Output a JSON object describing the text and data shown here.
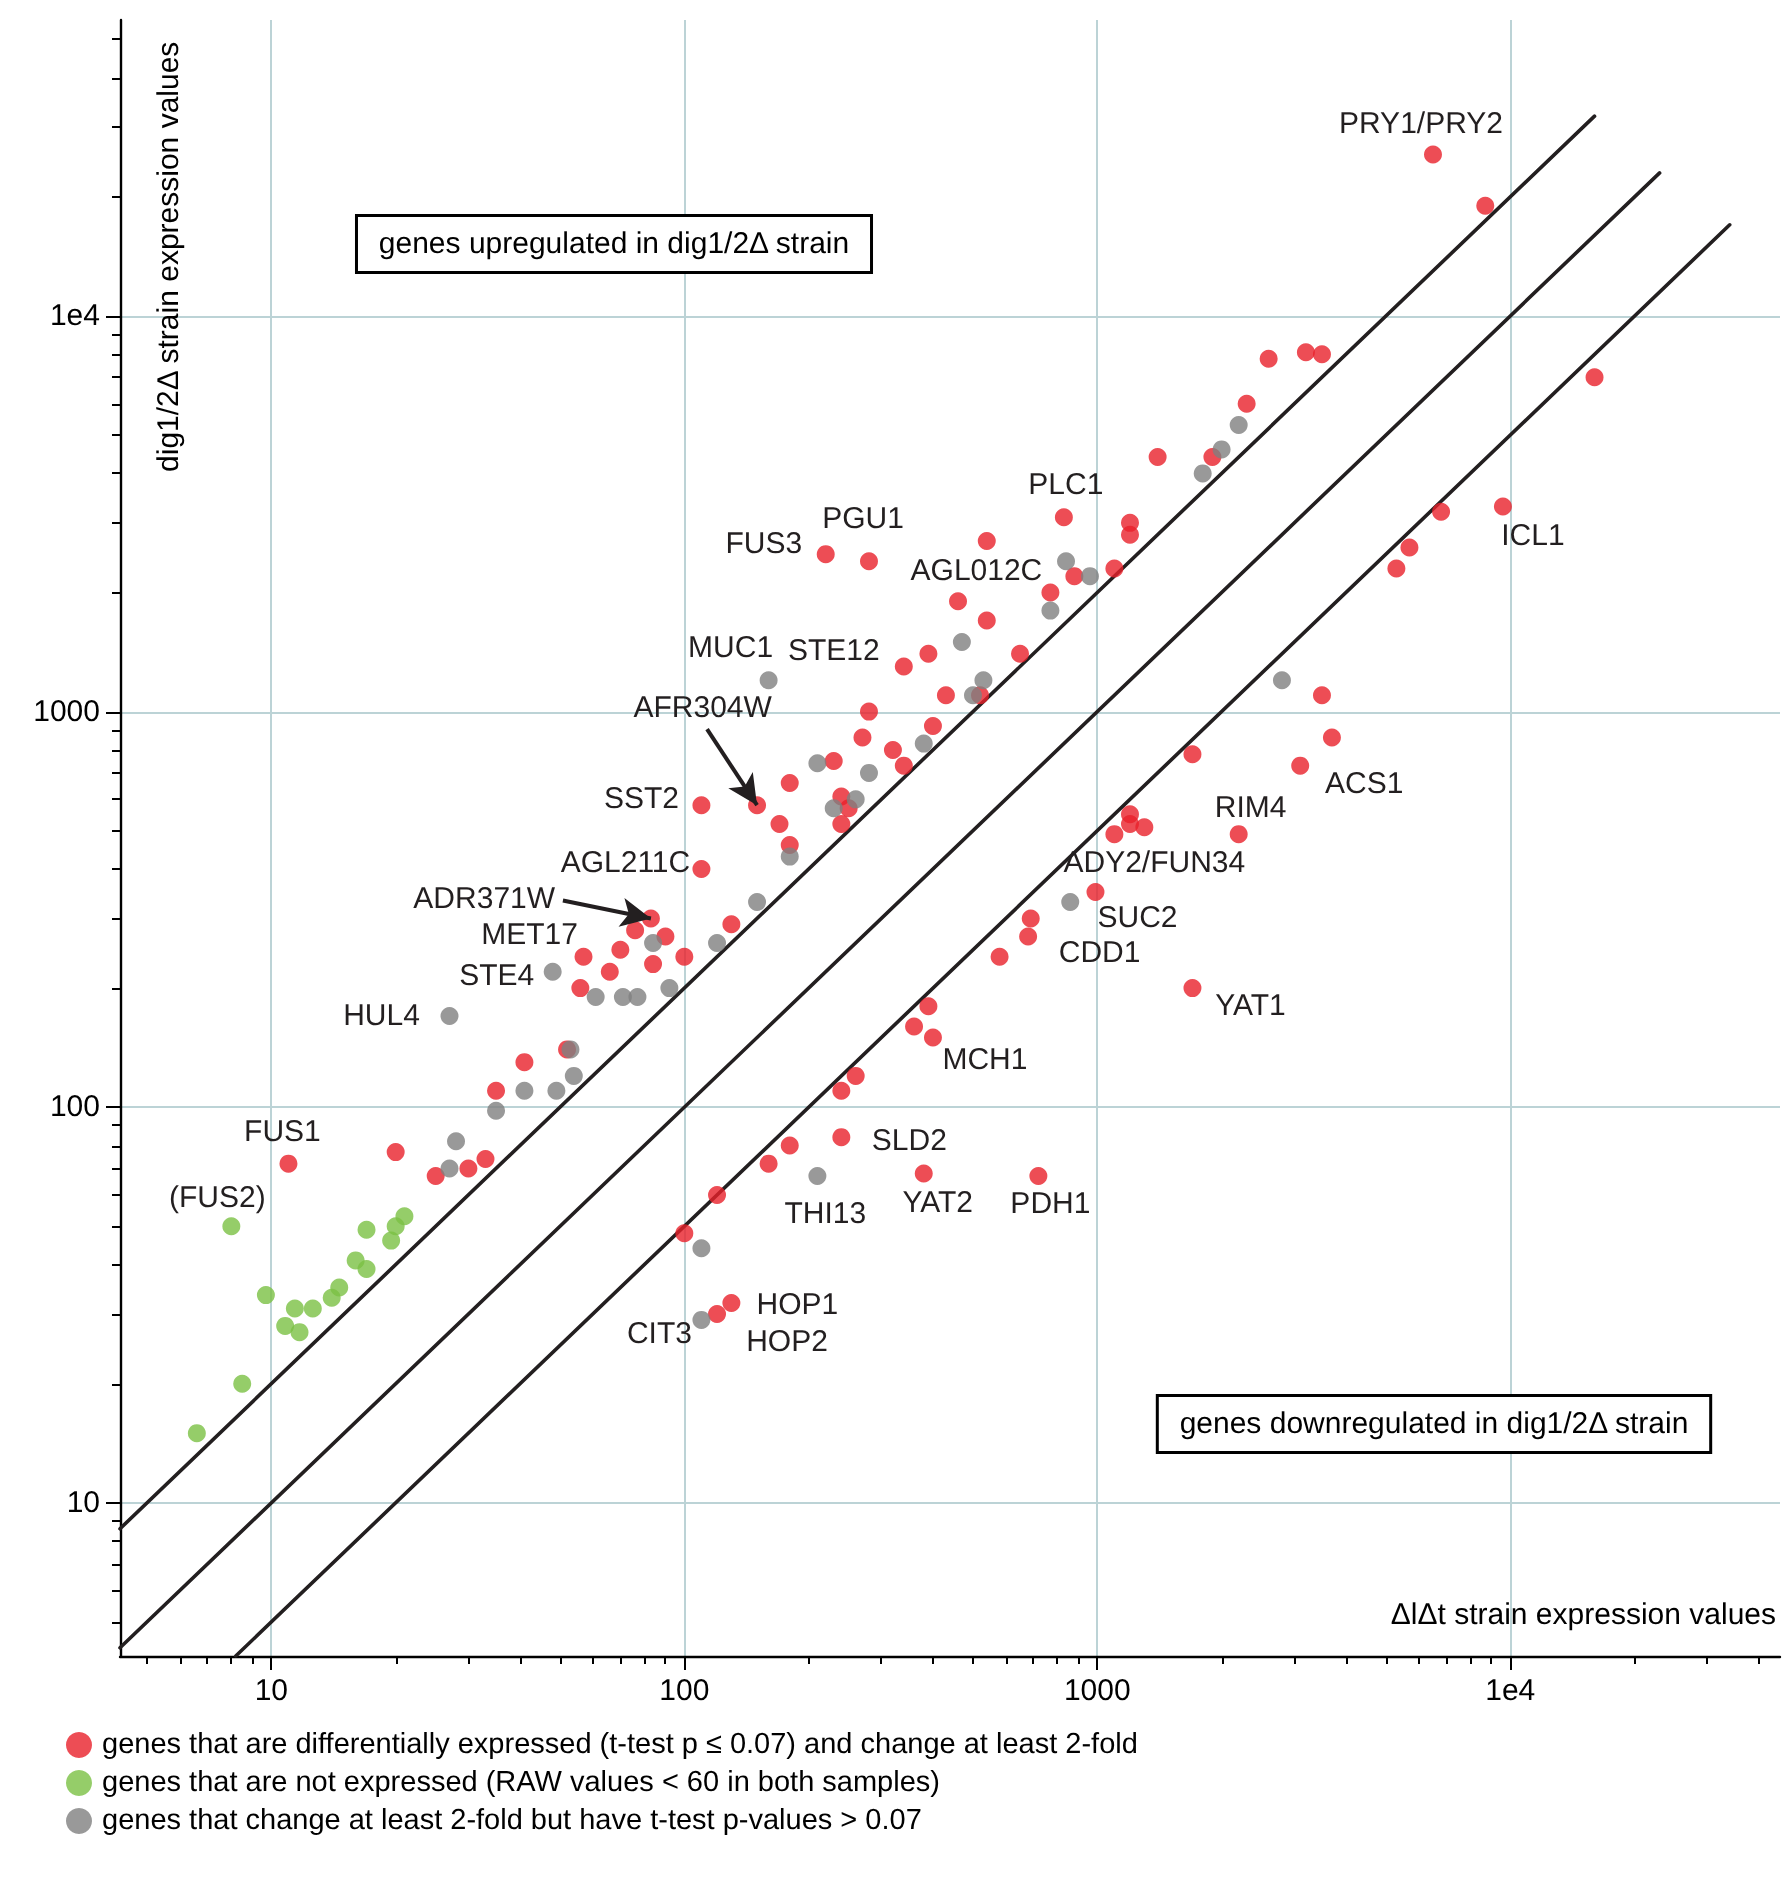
{
  "chart_data": {
    "type": "scatter",
    "xlabel": "ΔlΔt strain expression values",
    "ylabel": "dig1/2Δ strain expression values",
    "log": "xy",
    "grid": true,
    "legend": "bottom",
    "marker": "circle",
    "xlim": [
      4.3,
      45000
    ],
    "ylim": [
      4.1,
      56000
    ],
    "xticks": [
      {
        "value": 5,
        "label": null
      },
      {
        "value": 6,
        "label": null
      },
      {
        "value": 7,
        "label": null
      },
      {
        "value": 8,
        "label": null
      },
      {
        "value": 9,
        "label": null
      },
      10,
      {
        "value": 20,
        "label": null
      },
      {
        "value": 30,
        "label": null
      },
      {
        "value": 40,
        "label": null
      },
      {
        "value": 50,
        "label": null
      },
      {
        "value": 60,
        "label": null
      },
      {
        "value": 70,
        "label": null
      },
      {
        "value": 80,
        "label": null
      },
      {
        "value": 90,
        "label": null
      },
      100,
      {
        "value": 200,
        "label": null
      },
      {
        "value": 300,
        "label": null
      },
      {
        "value": 400,
        "label": null
      },
      {
        "value": 500,
        "label": null
      },
      {
        "value": 600,
        "label": null
      },
      {
        "value": 700,
        "label": null
      },
      {
        "value": 800,
        "label": null
      },
      {
        "value": 900,
        "label": null
      },
      1000,
      {
        "value": 2000,
        "label": null
      },
      {
        "value": 3000,
        "label": null
      },
      {
        "value": 4000,
        "label": null
      },
      {
        "value": 5000,
        "label": null
      },
      {
        "value": 6000,
        "label": null
      },
      {
        "value": 7000,
        "label": null
      },
      {
        "value": 8000,
        "label": null
      },
      {
        "value": 9000,
        "label": null
      },
      {
        "value": 10000,
        "label": "1e4"
      },
      {
        "value": 20000,
        "label": null
      },
      {
        "value": 30000,
        "label": null
      },
      {
        "value": 40000,
        "label": null
      }
    ],
    "yticks": [
      {
        "value": 5,
        "label": null
      },
      {
        "value": 6,
        "label": null
      },
      {
        "value": 7,
        "label": null
      },
      {
        "value": 8,
        "label": null
      },
      {
        "value": 9,
        "label": null
      },
      10,
      {
        "value": 20,
        "label": null
      },
      {
        "value": 30,
        "label": null
      },
      {
        "value": 40,
        "label": null
      },
      {
        "value": 50,
        "label": null
      },
      {
        "value": 60,
        "label": null
      },
      {
        "value": 70,
        "label": null
      },
      {
        "value": 80,
        "label": null
      },
      {
        "value": 90,
        "label": null
      },
      100,
      {
        "value": 200,
        "label": null
      },
      {
        "value": 300,
        "label": null
      },
      {
        "value": 400,
        "label": null
      },
      {
        "value": 500,
        "label": null
      },
      {
        "value": 600,
        "label": null
      },
      {
        "value": 700,
        "label": null
      },
      {
        "value": 800,
        "label": null
      },
      {
        "value": 900,
        "label": null
      },
      1000,
      {
        "value": 2000,
        "label": null
      },
      {
        "value": 3000,
        "label": null
      },
      {
        "value": 4000,
        "label": null
      },
      {
        "value": 5000,
        "label": null
      },
      {
        "value": 6000,
        "label": null
      },
      {
        "value": 7000,
        "label": null
      },
      {
        "value": 8000,
        "label": null
      },
      {
        "value": 9000,
        "label": null
      },
      {
        "value": 10000,
        "label": "1e4"
      },
      {
        "value": 20000,
        "label": null
      },
      {
        "value": 30000,
        "label": null
      },
      {
        "value": 40000,
        "label": null
      },
      {
        "value": 50000,
        "label": null
      }
    ],
    "series": [
      {
        "name": "genes that are differentially expressed (t-test p ≤ 0.07) and change at least 2-fold",
        "color": "#e8202a",
        "x": [
          6500,
          8700,
          2600,
          3200,
          3500,
          2300,
          1900,
          1400,
          1200,
          1200,
          830,
          540,
          220,
          280,
          1100,
          880,
          770,
          460,
          540,
          340,
          390,
          430,
          280,
          400,
          270,
          320,
          340,
          230,
          180,
          240,
          250,
          240,
          150,
          170,
          180,
          650,
          520,
          110,
          110,
          83,
          76,
          90,
          70,
          57,
          84,
          100,
          66,
          56,
          130,
          52,
          41,
          35,
          11,
          20,
          25,
          30,
          33,
          100,
          120,
          130,
          120,
          160,
          180,
          240,
          380,
          720,
          260,
          240,
          390,
          360,
          400,
          580,
          690,
          680,
          990,
          1100,
          1200,
          1200,
          1300,
          1700,
          1700,
          2200,
          3100,
          3500,
          3700,
          5300,
          5700,
          6800,
          9600,
          16000
        ],
        "values": [
          25600,
          19000,
          7800,
          8100,
          8000,
          6000,
          4400,
          4400,
          3000,
          2800,
          3100,
          2700,
          2500,
          2400,
          2300,
          2200,
          2000,
          1900,
          1700,
          1300,
          1400,
          1100,
          1000,
          920,
          860,
          800,
          730,
          750,
          660,
          610,
          570,
          520,
          580,
          520,
          460,
          1400,
          1100,
          580,
          400,
          300,
          280,
          270,
          250,
          240,
          230,
          240,
          220,
          200,
          290,
          140,
          130,
          110,
          72,
          77,
          67,
          70,
          74,
          48,
          30,
          32,
          60,
          72,
          80,
          84,
          68,
          67,
          120,
          110,
          180,
          160,
          150,
          240,
          300,
          270,
          350,
          490,
          520,
          550,
          510,
          780,
          200,
          490,
          730,
          1100,
          860,
          2300,
          2600,
          3200,
          3300,
          7000
        ]
      },
      {
        "name": "genes that are not expressed (RAW values < 60 in both samples)",
        "color": "#7ac143",
        "x": [
          8,
          17,
          20,
          21,
          19.5,
          16,
          17,
          14.6,
          14,
          9.7,
          11.4,
          12.6,
          10.8,
          11.7,
          8.5,
          6.6
        ],
        "values": [
          50,
          49,
          50,
          53,
          46,
          41,
          39,
          35,
          33,
          33.5,
          31,
          31,
          28,
          27,
          20,
          15
        ]
      },
      {
        "name": "genes that change at least 2-fold but have t-test p-values > 0.07",
        "color": "#808080",
        "x": [
          2200,
          2000,
          1800,
          840,
          960,
          770,
          470,
          530,
          500,
          160,
          380,
          280,
          210,
          260,
          230,
          180,
          150,
          120,
          92,
          84,
          48,
          61,
          71,
          77,
          27,
          53,
          54,
          41,
          49,
          35,
          28,
          27,
          210,
          110,
          110,
          860,
          2800
        ],
        "values": [
          5300,
          4600,
          4000,
          2400,
          2200,
          1800,
          1500,
          1200,
          1100,
          1200,
          830,
          700,
          740,
          600,
          570,
          430,
          330,
          260,
          200,
          260,
          220,
          190,
          190,
          190,
          170,
          140,
          120,
          110,
          110,
          98,
          82,
          70,
          67,
          44,
          29,
          330,
          1200
        ]
      },
      {
        "type": "line",
        "color": "#231f20",
        "marker": "none",
        "x": [
          4.3,
          16000
        ],
        "values": [
          8.6,
          32000
        ]
      },
      {
        "type": "line",
        "color": "#231f20",
        "marker": "none",
        "x": [
          4.3,
          23000
        ],
        "values": [
          4.3,
          23000
        ]
      },
      {
        "type": "line",
        "color": "#231f20",
        "marker": "none",
        "x": [
          8.2,
          34000
        ],
        "values": [
          4.1,
          17000
        ]
      }
    ],
    "annotations": [
      "genes upregulated in dig1/2Δ strain",
      "genes downregulated in dig1/2Δ strain",
      {
        "text": "PRY1/PRY2",
        "x": 6500,
        "y": 25600
      },
      {
        "text": "FUS3",
        "x": 220,
        "y": 2500
      },
      {
        "text": "PGU1",
        "x": 280,
        "y": 2400
      },
      {
        "text": "PLC1",
        "x": 830,
        "y": 3100
      },
      {
        "text": "AGL012C",
        "x": 770,
        "y": 2000
      },
      {
        "text": "MUC1",
        "x": 160,
        "y": 1200
      },
      {
        "text": "STE12",
        "x": 340,
        "y": 1300
      },
      {
        "text": "AFR304W",
        "x": 150,
        "y": 580
      },
      {
        "text": "SST2",
        "x": 110,
        "y": 580
      },
      {
        "text": "AGL211C",
        "x": 110,
        "y": 400
      },
      {
        "text": "ADR371W",
        "x": 83,
        "y": 300
      },
      {
        "text": "MET17",
        "x": 57,
        "y": 240
      },
      {
        "text": "STE4",
        "x": 48,
        "y": 220
      },
      {
        "text": "HUL4",
        "x": 27,
        "y": 170
      },
      {
        "text": "FUS1",
        "x": 11,
        "y": 72
      },
      {
        "text": "(FUS2)",
        "x": 8,
        "y": 50
      },
      {
        "text": "ICL1",
        "x": 9600,
        "y": 3300
      },
      {
        "text": "ACS1",
        "x": 3100,
        "y": 730
      },
      {
        "text": "RIM4",
        "x": 2200,
        "y": 490
      },
      {
        "text": "ADY2/FUN34",
        "x": 1300,
        "y": 510
      },
      {
        "text": "SUC2",
        "x": 990,
        "y": 350
      },
      {
        "text": "CDD1",
        "x": 580,
        "y": 240
      },
      {
        "text": "YAT1",
        "x": 1700,
        "y": 200
      },
      {
        "text": "MCH1",
        "x": 400,
        "y": 150
      },
      {
        "text": "SLD2",
        "x": 240,
        "y": 84
      },
      {
        "text": "THI13",
        "x": 210,
        "y": 67
      },
      {
        "text": "YAT2",
        "x": 380,
        "y": 68
      },
      {
        "text": "PDH1",
        "x": 720,
        "y": 67
      },
      {
        "text": "HOP1",
        "x": 130,
        "y": 32
      },
      {
        "text": "HOP2",
        "x": 120,
        "y": 30
      },
      {
        "text": "CIT3",
        "x": 110,
        "y": 29
      }
    ]
  }
}
